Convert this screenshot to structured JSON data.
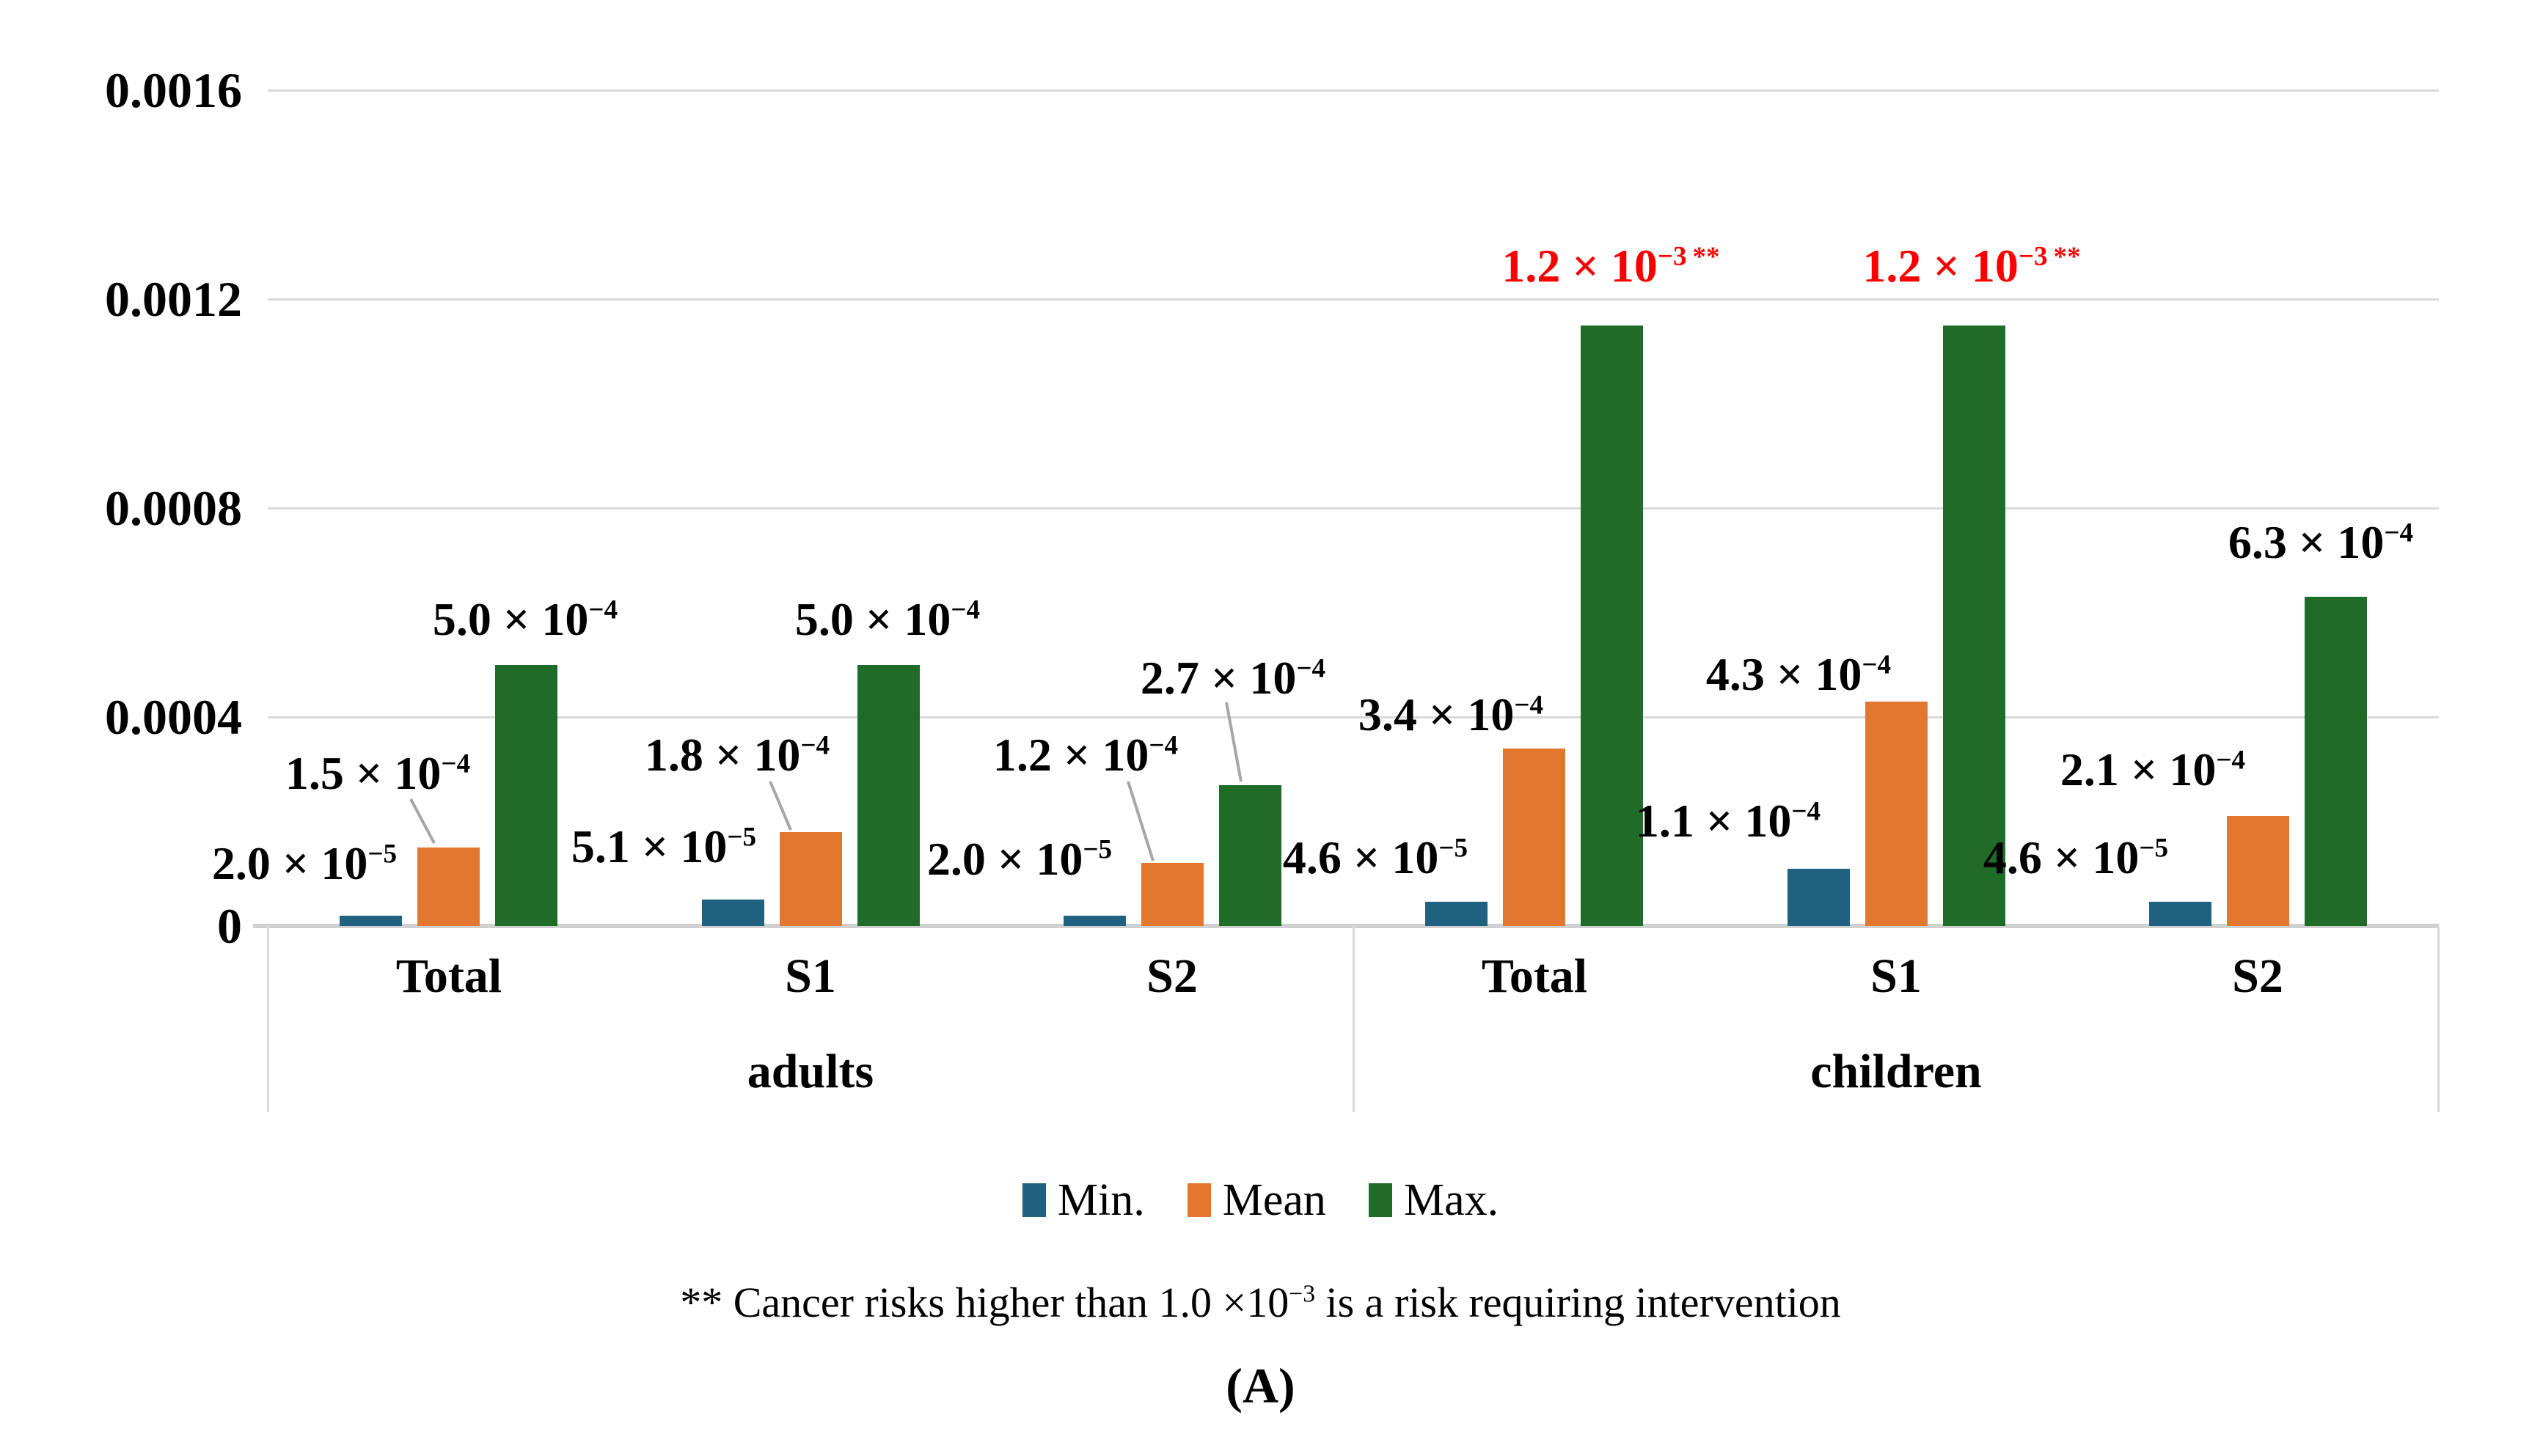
{
  "chart_data": {
    "type": "bar",
    "title": "",
    "xlabel": "",
    "ylabel": "",
    "ylim": [
      0,
      0.0016
    ],
    "grid": true,
    "legend_position": "bottom-center",
    "y_tick_labels_top_to_bottom": [
      "0.0016",
      "0.0012",
      "0.0008",
      "0.0004",
      "0"
    ],
    "groups": [
      {
        "label": "adults",
        "categories": [
          "Total",
          "S1",
          "S2"
        ]
      },
      {
        "label": "children",
        "categories": [
          "Total",
          "S1",
          "S2"
        ]
      }
    ],
    "categories": [
      "Total (adults)",
      "S1 (adults)",
      "S2 (adults)",
      "Total (children)",
      "S1 (children)",
      "S2 (children)"
    ],
    "series": [
      {
        "name": "Min.",
        "color": "#20617f",
        "values": [
          2e-05,
          5.1e-05,
          2e-05,
          4.6e-05,
          0.00011,
          4.6e-05
        ],
        "data_labels": [
          "2.0 × 10^−5",
          "5.1 × 10^−5",
          "2.0 × 10^−5",
          "4.6 × 10^−5",
          "1.1 × 10^−4",
          "4.6 × 10^−5"
        ]
      },
      {
        "name": "Mean",
        "color": "#e4772f",
        "values": [
          0.00015,
          0.00018,
          0.00012,
          0.00034,
          0.00043,
          0.00021
        ],
        "data_labels": [
          "1.5 × 10^−4",
          "1.8 × 10^−4",
          "1.2 × 10^−4",
          "3.4 × 10^−4",
          "4.3 × 10^−4",
          "2.1 × 10^−4"
        ]
      },
      {
        "name": "Max.",
        "color": "#1e6c27",
        "values": [
          0.0005,
          0.0005,
          0.00027,
          0.0012,
          0.0012,
          0.00063
        ],
        "drawn_values": [
          0.0005,
          0.0005,
          0.00027,
          0.00115,
          0.00115,
          0.00063
        ],
        "data_labels": [
          "5.0 × 10^−4",
          "5.0 × 10^−4",
          "2.7 × 10^−4",
          "1.2 × 10^−3 **",
          "1.2 × 10^−3 **",
          "6.3 × 10^−4"
        ],
        "label_flagged": [
          false,
          false,
          false,
          true,
          true,
          false
        ]
      }
    ],
    "flag_color": "#fb0000",
    "gridline_color": "#d9d9d9",
    "leader_line_color": "#a6a6a6"
  },
  "footnote": {
    "prefix": "** Cancer risks higher than 1.0 ×10",
    "exp": "−3",
    "suffix": " is a risk requiring intervention"
  },
  "panel_label": "(A)"
}
